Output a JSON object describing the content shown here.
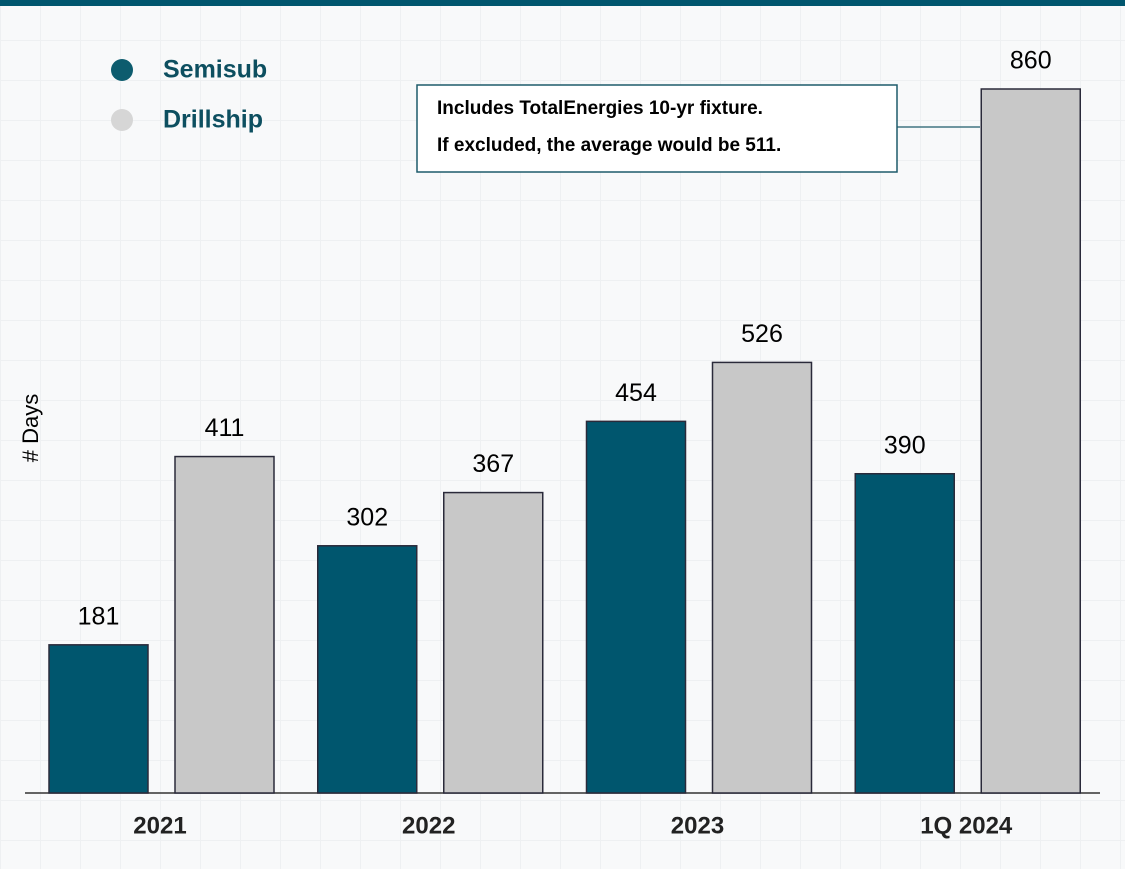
{
  "chart_data": {
    "type": "bar",
    "y_label": "# Days",
    "categories": [
      "2021",
      "2022",
      "2023",
      "1Q 2024"
    ],
    "series": [
      {
        "name": "Semisub",
        "color": "#00566e",
        "values": [
          181,
          302,
          454,
          390
        ]
      },
      {
        "name": "Drillship",
        "color": "#c8c8c8",
        "values": [
          411,
          367,
          526,
          860
        ]
      }
    ],
    "ylim": [
      0,
      860
    ],
    "annotation": [
      "Includes TotalEnergies 10-yr fixture.",
      "If excluded, the average would be 511."
    ]
  }
}
